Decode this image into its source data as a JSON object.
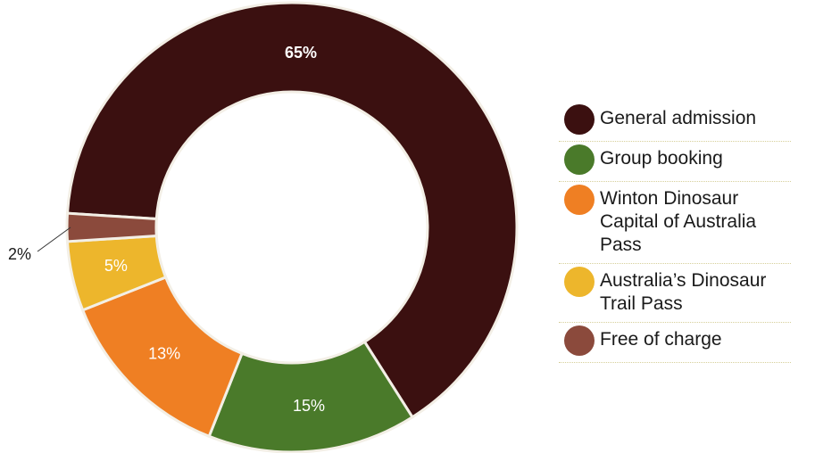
{
  "chart_data": {
    "type": "pie",
    "donut": true,
    "categories": [
      "General admission",
      "Group booking",
      "Winton Dinosaur Capital of Australia Pass",
      "Australia’s Dinosaur Trail Pass",
      "Free of charge"
    ],
    "values": [
      65,
      15,
      13,
      5,
      2
    ],
    "value_labels": [
      "65%",
      "15%",
      "13%",
      "5%",
      "2%"
    ],
    "colors": [
      "#3b1010",
      "#4a7a2a",
      "#ef7f23",
      "#edb62c",
      "#8b4a3c"
    ],
    "legend_position": "right"
  },
  "legend": {
    "items": [
      {
        "label": "General admission",
        "color": "#3b1010"
      },
      {
        "label": "Group booking",
        "color": "#4a7a2a"
      },
      {
        "label": "Winton Dinosaur Capital of Australia Pass",
        "color": "#ef7f23"
      },
      {
        "label": "Australia’s Dinosaur Trail Pass",
        "color": "#edb62c"
      },
      {
        "label": "Free of charge",
        "color": "#8b4a3c"
      }
    ]
  }
}
